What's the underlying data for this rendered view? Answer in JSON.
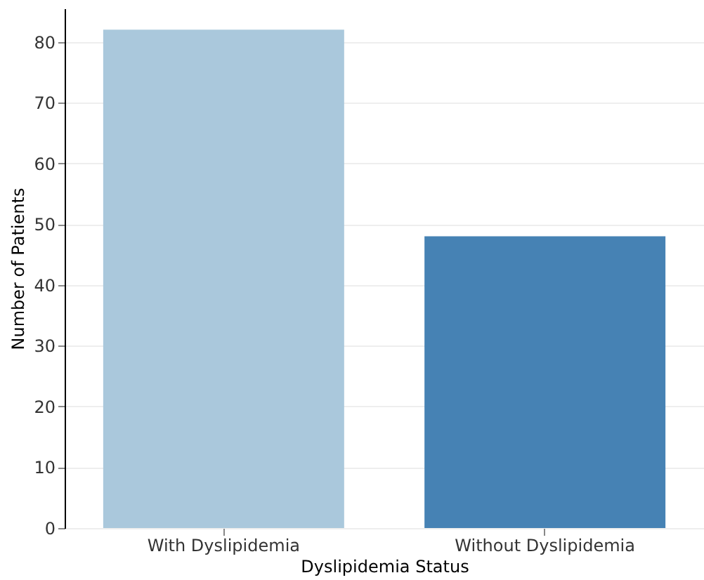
{
  "chart_data": {
    "type": "bar",
    "xlabel": "Dyslipidemia Status",
    "ylabel": "Number of Patients",
    "categories": [
      "With Dyslipidemia",
      "Without Dyslipidemia"
    ],
    "values": [
      82,
      48
    ],
    "colors": [
      "#aac8dc",
      "#4682b4"
    ],
    "ylim": [
      0,
      85.5
    ],
    "yticks": [
      0,
      10,
      20,
      30,
      40,
      50,
      60,
      70,
      80
    ],
    "grid": "y"
  }
}
